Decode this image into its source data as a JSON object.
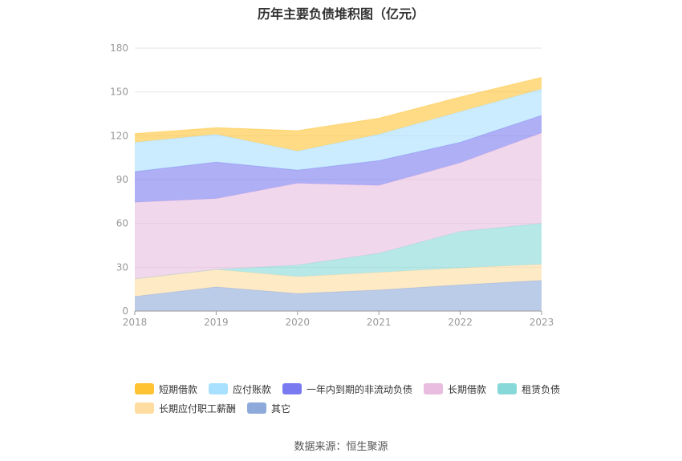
{
  "chart_data": {
    "type": "area",
    "stacked": true,
    "title": "历年主要负债堆积图（亿元）",
    "x": [
      "2018",
      "2019",
      "2020",
      "2021",
      "2022",
      "2023"
    ],
    "ylim": [
      0,
      180
    ],
    "yticks": [
      0,
      30,
      60,
      90,
      120,
      150,
      180
    ],
    "grid": true,
    "legend_position": "bottom",
    "series": [
      {
        "name": "其它",
        "color": "#8eaadb",
        "values": [
          10,
          16.5,
          12,
          14.5,
          18,
          21
        ]
      },
      {
        "name": "长期应付职工薪酬",
        "color": "#ffdca0",
        "values": [
          12,
          12,
          11.5,
          12,
          11.5,
          11
        ]
      },
      {
        "name": "租赁负债",
        "color": "#87d8d8",
        "values": [
          0,
          0,
          8,
          13,
          25,
          28
        ]
      },
      {
        "name": "长期借款",
        "color": "#e8bddf",
        "values": [
          52.5,
          48.5,
          56,
          46.5,
          47,
          62
        ]
      },
      {
        "name": "一年内到期的非流动负债",
        "color": "#7a7af0",
        "values": [
          21,
          25,
          9,
          17,
          14,
          12
        ]
      },
      {
        "name": "应付账款",
        "color": "#a8e0ff",
        "values": [
          20,
          19,
          13,
          18,
          21,
          18
        ]
      },
      {
        "name": "短期借款",
        "color": "#ffc333",
        "values": [
          6,
          4.5,
          14,
          11,
          10,
          8
        ]
      }
    ]
  },
  "legend_rows": [
    [
      "短期借款",
      "应付账款",
      "一年内到期的非流动负债",
      "长期借款",
      "租赁负债"
    ],
    [
      "长期应付职工薪酬",
      "其它"
    ]
  ],
  "source": "数据来源：恒生聚源"
}
